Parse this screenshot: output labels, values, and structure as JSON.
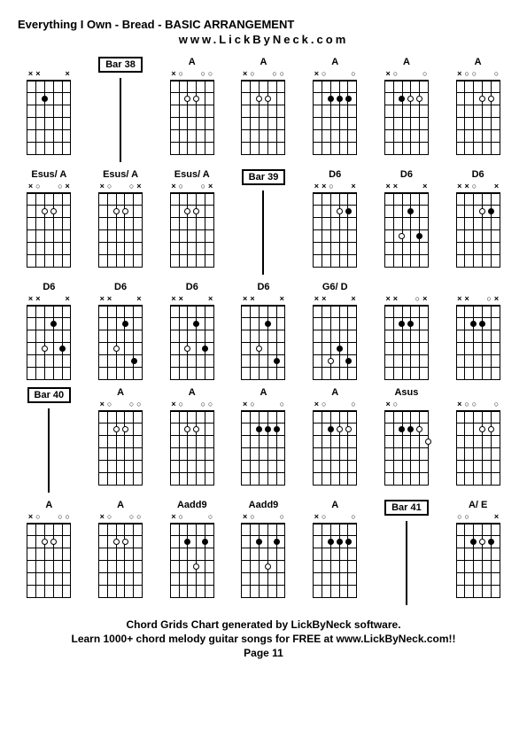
{
  "title": "Everything I Own - Bread - BASIC ARRANGEMENT",
  "website": "www.LickByNeck.com",
  "footer": {
    "line1": "Chord Grids Chart generated by LickByNeck software.",
    "line2": "Learn 1000+ chord melody guitar songs for FREE at www.LickByNeck.com!!",
    "page": "Page 11"
  },
  "grid_cols": 7,
  "cells": [
    {
      "type": "chord",
      "label": "",
      "marks": [
        "x",
        "x",
        "",
        "",
        "",
        "x"
      ],
      "dots": [
        {
          "s": 2,
          "f": 2,
          "o": false
        }
      ],
      "opens": []
    },
    {
      "type": "bar",
      "label": "Bar 38"
    },
    {
      "type": "chord",
      "label": "A",
      "marks": [
        "x",
        "",
        "",
        "",
        "",
        ""
      ],
      "dots": [
        {
          "s": 2,
          "f": 2,
          "o": true
        },
        {
          "s": 3,
          "f": 2,
          "o": true
        }
      ],
      "opens": [
        1,
        4,
        5
      ]
    },
    {
      "type": "chord",
      "label": "A",
      "marks": [
        "x",
        "",
        "",
        "",
        "",
        ""
      ],
      "dots": [
        {
          "s": 2,
          "f": 2,
          "o": true
        },
        {
          "s": 3,
          "f": 2,
          "o": true
        }
      ],
      "opens": [
        1,
        4,
        5
      ]
    },
    {
      "type": "chord",
      "label": "A",
      "marks": [
        "x",
        "",
        "",
        "",
        "",
        ""
      ],
      "dots": [
        {
          "s": 2,
          "f": 2,
          "o": false
        },
        {
          "s": 3,
          "f": 2,
          "o": false
        },
        {
          "s": 4,
          "f": 2,
          "o": false
        }
      ],
      "opens": [
        1,
        5
      ]
    },
    {
      "type": "chord",
      "label": "A",
      "marks": [
        "x",
        "",
        "",
        "",
        "",
        ""
      ],
      "dots": [
        {
          "s": 2,
          "f": 2,
          "o": false
        },
        {
          "s": 3,
          "f": 2,
          "o": true
        },
        {
          "s": 4,
          "f": 2,
          "o": true
        }
      ],
      "opens": [
        1,
        5
      ]
    },
    {
      "type": "chord",
      "label": "A",
      "marks": [
        "x",
        "",
        "",
        "",
        "",
        ""
      ],
      "dots": [
        {
          "s": 3,
          "f": 2,
          "o": true
        },
        {
          "s": 4,
          "f": 2,
          "o": true
        }
      ],
      "opens": [
        1,
        2,
        5
      ]
    },
    {
      "type": "chord",
      "label": "Esus/ A",
      "marks": [
        "x",
        "",
        "",
        "",
        "",
        "x"
      ],
      "dots": [
        {
          "s": 2,
          "f": 2,
          "o": true
        },
        {
          "s": 3,
          "f": 2,
          "o": true
        }
      ],
      "opens": [
        1,
        4
      ]
    },
    {
      "type": "chord",
      "label": "Esus/ A",
      "marks": [
        "x",
        "",
        "",
        "",
        "",
        "x"
      ],
      "dots": [
        {
          "s": 2,
          "f": 2,
          "o": true
        },
        {
          "s": 3,
          "f": 2,
          "o": true
        }
      ],
      "opens": [
        1,
        4
      ]
    },
    {
      "type": "chord",
      "label": "Esus/ A",
      "marks": [
        "x",
        "",
        "",
        "",
        "",
        "x"
      ],
      "dots": [
        {
          "s": 2,
          "f": 2,
          "o": true
        },
        {
          "s": 3,
          "f": 2,
          "o": true
        }
      ],
      "opens": [
        1,
        4
      ]
    },
    {
      "type": "bar",
      "label": "Bar 39"
    },
    {
      "type": "chord",
      "label": "D6",
      "marks": [
        "x",
        "x",
        "",
        "",
        "",
        "x"
      ],
      "dots": [
        {
          "s": 3,
          "f": 2,
          "o": true
        },
        {
          "s": 4,
          "f": 2,
          "o": false
        }
      ],
      "opens": [
        2
      ]
    },
    {
      "type": "chord",
      "label": "D6",
      "marks": [
        "x",
        "x",
        "",
        "",
        "",
        "x"
      ],
      "dots": [
        {
          "s": 2,
          "f": 4,
          "o": true
        },
        {
          "s": 3,
          "f": 2,
          "o": false
        },
        {
          "s": 4,
          "f": 4,
          "o": false
        }
      ],
      "opens": []
    },
    {
      "type": "chord",
      "label": "D6",
      "marks": [
        "x",
        "x",
        "",
        "",
        "",
        "x"
      ],
      "dots": [
        {
          "s": 3,
          "f": 2,
          "o": true
        },
        {
          "s": 4,
          "f": 2,
          "o": false
        }
      ],
      "opens": [
        2
      ]
    },
    {
      "type": "chord",
      "label": "D6",
      "marks": [
        "x",
        "x",
        "",
        "",
        "",
        "x"
      ],
      "dots": [
        {
          "s": 2,
          "f": 4,
          "o": true
        },
        {
          "s": 3,
          "f": 2,
          "o": false
        },
        {
          "s": 4,
          "f": 4,
          "o": false
        }
      ],
      "opens": []
    },
    {
      "type": "chord",
      "label": "D6",
      "marks": [
        "x",
        "x",
        "",
        "",
        "",
        "x"
      ],
      "dots": [
        {
          "s": 2,
          "f": 4,
          "o": true
        },
        {
          "s": 3,
          "f": 2,
          "o": false
        },
        {
          "s": 4,
          "f": 5,
          "o": false
        }
      ],
      "opens": []
    },
    {
      "type": "chord",
      "label": "D6",
      "marks": [
        "x",
        "x",
        "",
        "",
        "",
        "x"
      ],
      "dots": [
        {
          "s": 2,
          "f": 4,
          "o": true
        },
        {
          "s": 3,
          "f": 2,
          "o": false
        },
        {
          "s": 4,
          "f": 4,
          "o": false
        }
      ],
      "opens": []
    },
    {
      "type": "chord",
      "label": "D6",
      "marks": [
        "x",
        "x",
        "",
        "",
        "",
        "x"
      ],
      "dots": [
        {
          "s": 2,
          "f": 4,
          "o": true
        },
        {
          "s": 3,
          "f": 2,
          "o": false
        },
        {
          "s": 4,
          "f": 5,
          "o": false
        }
      ],
      "opens": []
    },
    {
      "type": "chord",
      "label": "G6/ D",
      "marks": [
        "x",
        "x",
        "",
        "",
        "",
        "x"
      ],
      "dots": [
        {
          "s": 2,
          "f": 5,
          "o": true
        },
        {
          "s": 3,
          "f": 4,
          "o": false
        },
        {
          "s": 4,
          "f": 5,
          "o": false
        }
      ],
      "opens": []
    },
    {
      "type": "chord",
      "label": "",
      "marks": [
        "x",
        "x",
        "",
        "",
        "",
        "x"
      ],
      "dots": [
        {
          "s": 2,
          "f": 2,
          "o": false
        },
        {
          "s": 3,
          "f": 2,
          "o": false
        }
      ],
      "opens": [
        4
      ]
    },
    {
      "type": "chord",
      "label": "",
      "marks": [
        "x",
        "x",
        "",
        "",
        "",
        "x"
      ],
      "dots": [
        {
          "s": 2,
          "f": 2,
          "o": false
        },
        {
          "s": 3,
          "f": 2,
          "o": false
        }
      ],
      "opens": [
        4
      ]
    },
    {
      "type": "bar",
      "label": "Bar 40"
    },
    {
      "type": "chord",
      "label": "A",
      "marks": [
        "x",
        "",
        "",
        "",
        "",
        ""
      ],
      "dots": [
        {
          "s": 2,
          "f": 2,
          "o": true
        },
        {
          "s": 3,
          "f": 2,
          "o": true
        }
      ],
      "opens": [
        1,
        4,
        5
      ]
    },
    {
      "type": "chord",
      "label": "A",
      "marks": [
        "x",
        "",
        "",
        "",
        "",
        ""
      ],
      "dots": [
        {
          "s": 2,
          "f": 2,
          "o": true
        },
        {
          "s": 3,
          "f": 2,
          "o": true
        }
      ],
      "opens": [
        1,
        4,
        5
      ]
    },
    {
      "type": "chord",
      "label": "A",
      "marks": [
        "x",
        "",
        "",
        "",
        "",
        ""
      ],
      "dots": [
        {
          "s": 2,
          "f": 2,
          "o": false
        },
        {
          "s": 3,
          "f": 2,
          "o": false
        },
        {
          "s": 4,
          "f": 2,
          "o": false
        }
      ],
      "opens": [
        1,
        5
      ]
    },
    {
      "type": "chord",
      "label": "A",
      "marks": [
        "x",
        "",
        "",
        "",
        "",
        ""
      ],
      "dots": [
        {
          "s": 2,
          "f": 2,
          "o": false
        },
        {
          "s": 3,
          "f": 2,
          "o": true
        },
        {
          "s": 4,
          "f": 2,
          "o": true
        }
      ],
      "opens": [
        1,
        5
      ]
    },
    {
      "type": "chord",
      "label": "Asus",
      "marks": [
        "x",
        "",
        "",
        "",
        "",
        ""
      ],
      "dots": [
        {
          "s": 2,
          "f": 2,
          "o": false
        },
        {
          "s": 3,
          "f": 2,
          "o": false
        },
        {
          "s": 4,
          "f": 2,
          "o": true
        },
        {
          "s": 5,
          "f": 3,
          "o": true
        }
      ],
      "opens": [
        1
      ]
    },
    {
      "type": "chord",
      "label": "",
      "marks": [
        "x",
        "",
        "",
        "",
        "",
        ""
      ],
      "dots": [
        {
          "s": 3,
          "f": 2,
          "o": true
        },
        {
          "s": 4,
          "f": 2,
          "o": true
        }
      ],
      "opens": [
        1,
        2,
        5
      ]
    },
    {
      "type": "chord",
      "label": "A",
      "marks": [
        "x",
        "",
        "",
        "",
        "",
        ""
      ],
      "dots": [
        {
          "s": 2,
          "f": 2,
          "o": true
        },
        {
          "s": 3,
          "f": 2,
          "o": true
        }
      ],
      "opens": [
        1,
        4,
        5
      ]
    },
    {
      "type": "chord",
      "label": "A",
      "marks": [
        "x",
        "",
        "",
        "",
        "",
        ""
      ],
      "dots": [
        {
          "s": 2,
          "f": 2,
          "o": true
        },
        {
          "s": 3,
          "f": 2,
          "o": true
        }
      ],
      "opens": [
        1,
        4,
        5
      ]
    },
    {
      "type": "chord",
      "label": "Aadd9",
      "marks": [
        "x",
        "",
        "",
        "",
        "",
        ""
      ],
      "dots": [
        {
          "s": 2,
          "f": 2,
          "o": false
        },
        {
          "s": 3,
          "f": 4,
          "o": true
        },
        {
          "s": 4,
          "f": 2,
          "o": false
        }
      ],
      "opens": [
        1,
        5
      ]
    },
    {
      "type": "chord",
      "label": "Aadd9",
      "marks": [
        "x",
        "",
        "",
        "",
        "",
        ""
      ],
      "dots": [
        {
          "s": 2,
          "f": 2,
          "o": false
        },
        {
          "s": 3,
          "f": 4,
          "o": true
        },
        {
          "s": 4,
          "f": 2,
          "o": false
        }
      ],
      "opens": [
        1,
        5
      ]
    },
    {
      "type": "chord",
      "label": "A",
      "marks": [
        "x",
        "",
        "",
        "",
        "",
        ""
      ],
      "dots": [
        {
          "s": 2,
          "f": 2,
          "o": false
        },
        {
          "s": 3,
          "f": 2,
          "o": false
        },
        {
          "s": 4,
          "f": 2,
          "o": false
        }
      ],
      "opens": [
        1,
        5
      ]
    },
    {
      "type": "bar",
      "label": "Bar 41"
    },
    {
      "type": "chord",
      "label": "A/ E",
      "marks": [
        "",
        "",
        "",
        "",
        "",
        "x"
      ],
      "dots": [
        {
          "s": 2,
          "f": 2,
          "o": false
        },
        {
          "s": 3,
          "f": 2,
          "o": true
        },
        {
          "s": 4,
          "f": 2,
          "o": false
        }
      ],
      "opens": [
        0,
        1
      ]
    }
  ],
  "fret_count": 6,
  "string_spacing": 10,
  "fret_spacing": 14.2,
  "colors": {
    "bg": "#ffffff",
    "line": "#000000",
    "text": "#000000"
  }
}
